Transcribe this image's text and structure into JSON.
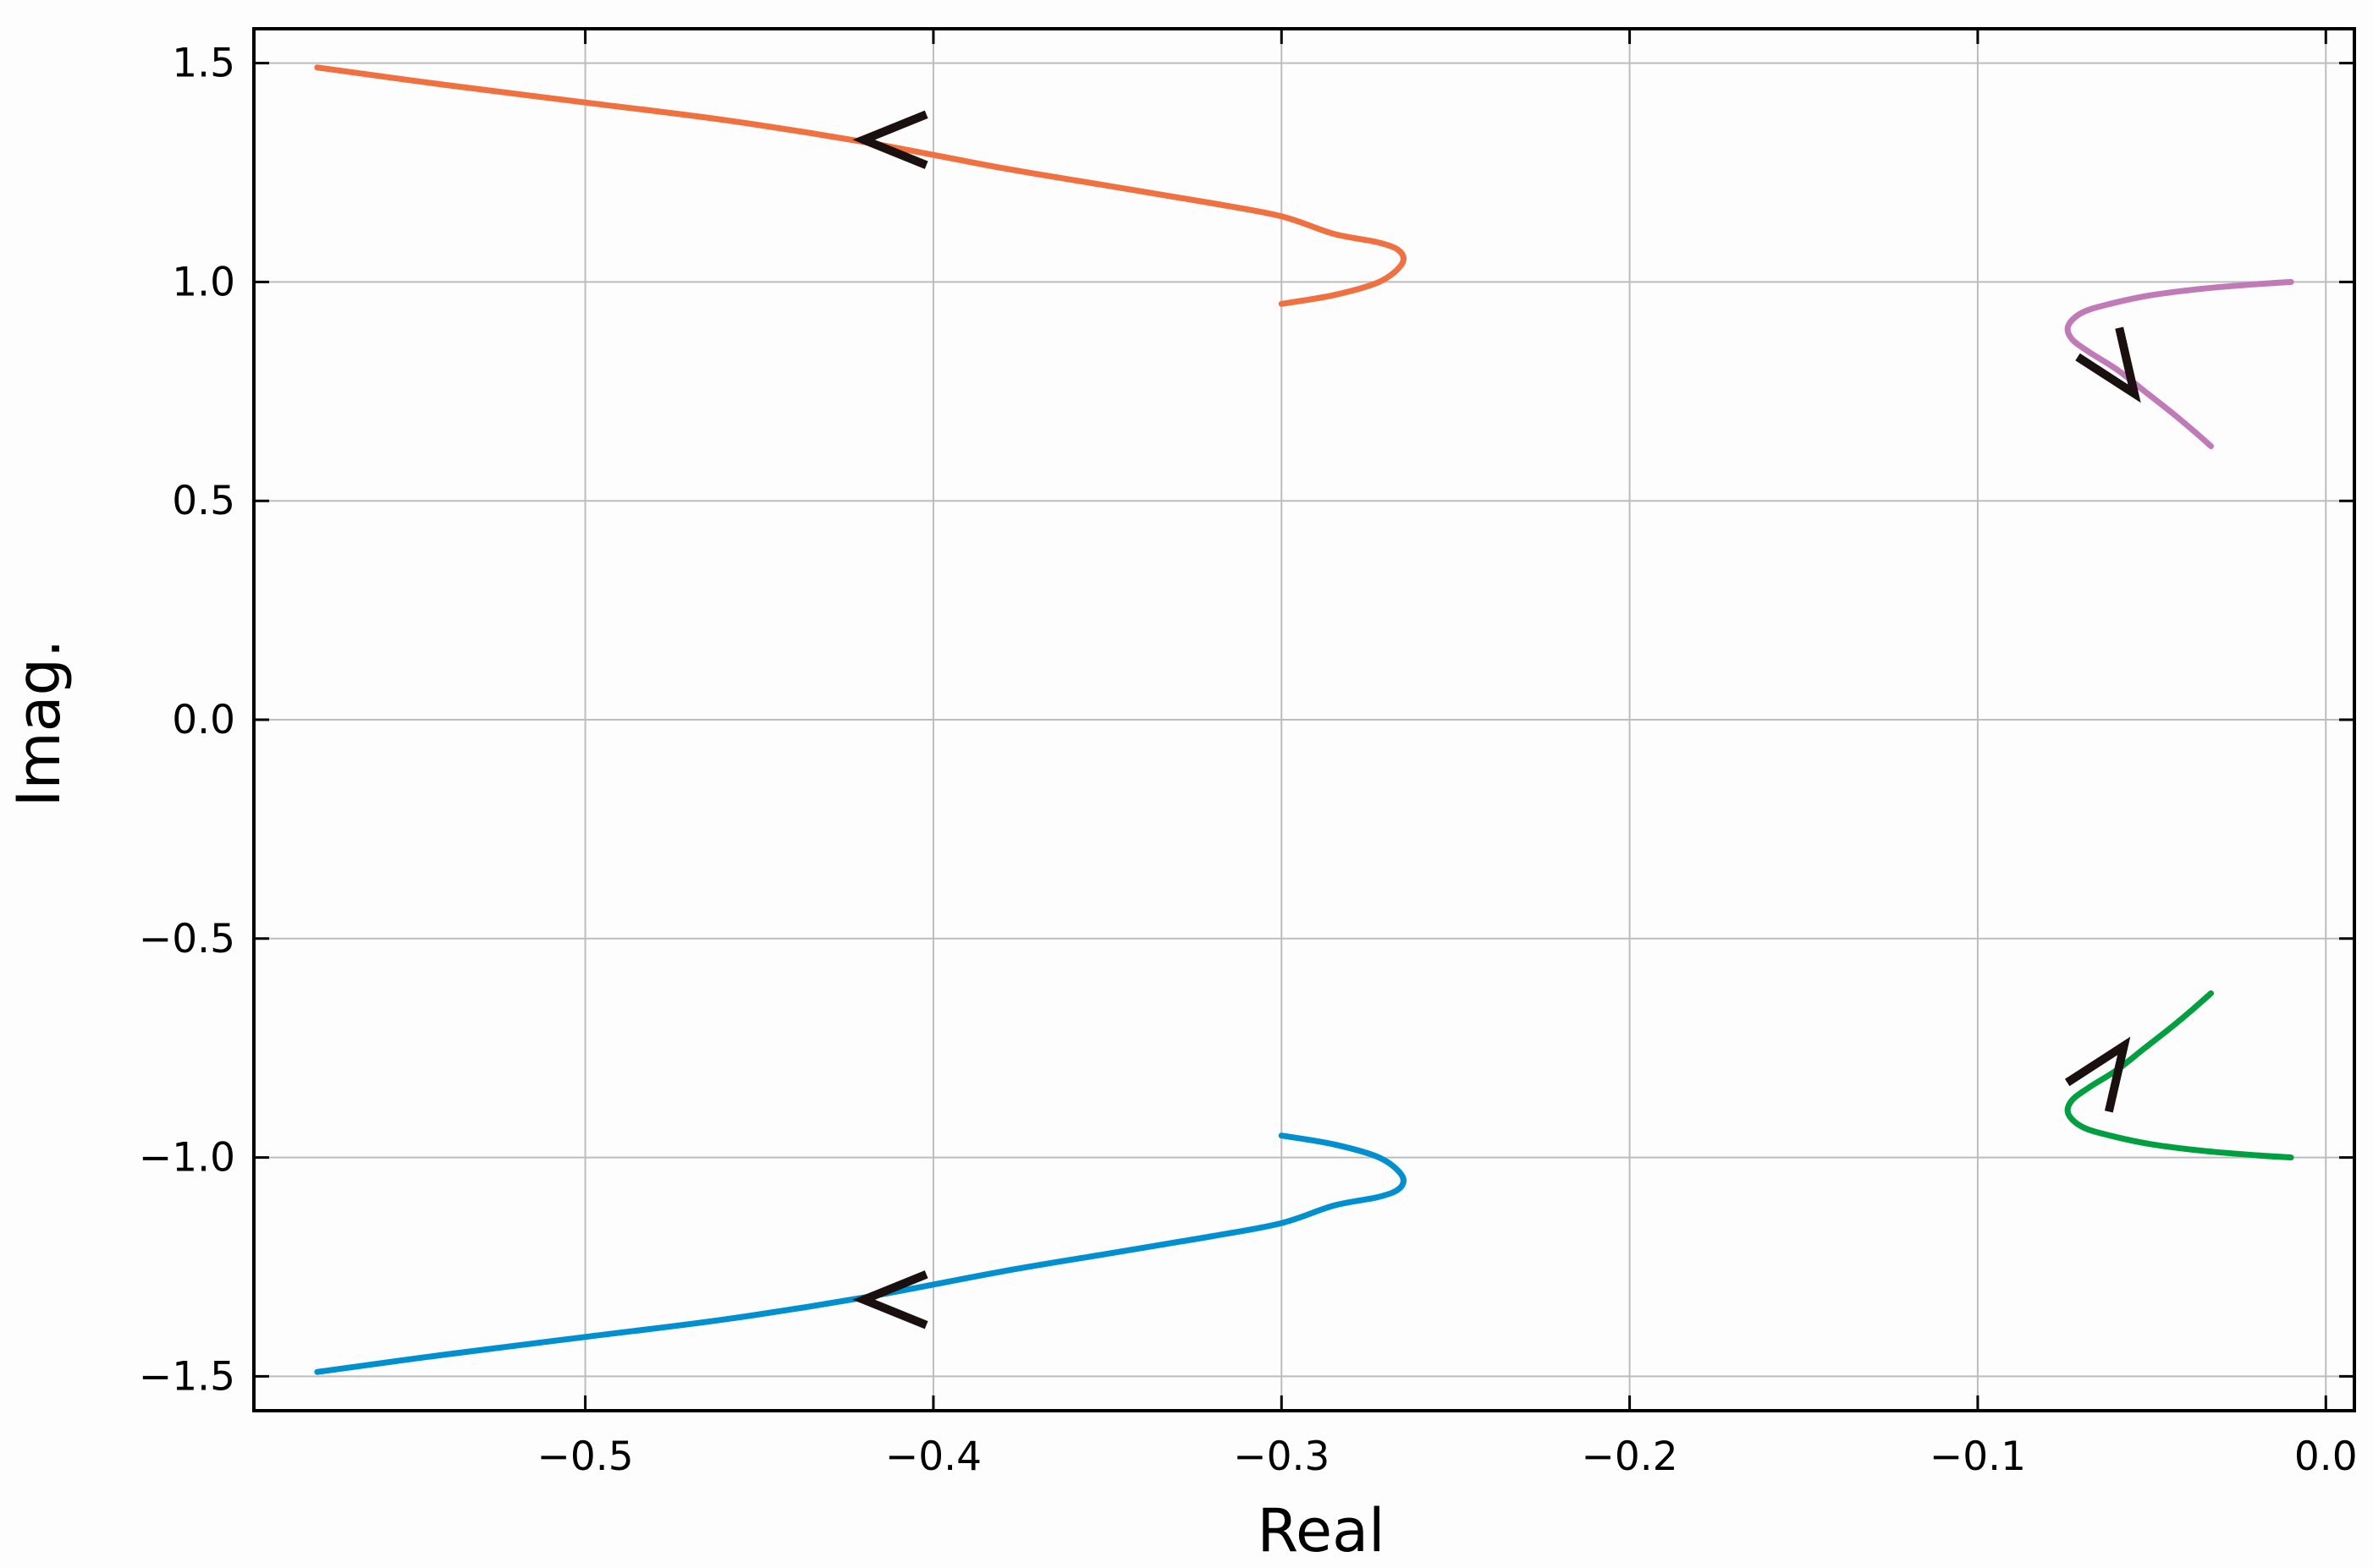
{
  "chart_data": {
    "type": "line",
    "title": "",
    "xlabel": "Real",
    "ylabel": "Imag.",
    "xlim": [
      -0.5952,
      0.0082
    ],
    "ylim": [
      -1.5785,
      1.5785
    ],
    "grid": true,
    "legend": "none",
    "x_ticks": [
      -0.5,
      -0.4,
      -0.3,
      -0.2,
      -0.1,
      0.0
    ],
    "x_tick_labels": [
      "−0.5",
      "−0.4",
      "−0.3",
      "−0.2",
      "−0.1",
      "0.0"
    ],
    "y_ticks": [
      1.5,
      1.0,
      0.5,
      0.0,
      -0.5,
      -1.0,
      -1.5
    ],
    "y_tick_labels": [
      "1.5",
      "1.0",
      "0.5",
      "0.0",
      "−0.5",
      "−1.0",
      "−1.5"
    ],
    "series": [
      {
        "color": "#f07040",
        "x": [
          -0.3,
          -0.285,
          -0.272,
          -0.2655,
          -0.266,
          -0.272,
          -0.285,
          -0.3,
          -0.32,
          -0.35,
          -0.38,
          -0.42,
          -0.46,
          -0.5,
          -0.54,
          -0.577
        ],
        "y": [
          0.95,
          0.97,
          1.0,
          1.04,
          1.07,
          1.09,
          1.11,
          1.15,
          1.18,
          1.22,
          1.26,
          1.32,
          1.37,
          1.41,
          1.45,
          1.49
        ],
        "arrow": {
          "x": -0.42,
          "y": 1.325,
          "direction": "left"
        }
      },
      {
        "color": "#0090d0",
        "x": [
          -0.3,
          -0.285,
          -0.272,
          -0.2655,
          -0.266,
          -0.272,
          -0.285,
          -0.3,
          -0.32,
          -0.35,
          -0.38,
          -0.42,
          -0.46,
          -0.5,
          -0.54,
          -0.577
        ],
        "y": [
          -0.95,
          -0.97,
          -1.0,
          -1.04,
          -1.07,
          -1.09,
          -1.11,
          -1.15,
          -1.18,
          -1.22,
          -1.26,
          -1.32,
          -1.37,
          -1.41,
          -1.45,
          -1.49
        ],
        "arrow": {
          "x": -0.42,
          "y": -1.325,
          "direction": "left"
        }
      },
      {
        "color": "#c07ab8",
        "x": [
          -0.01,
          -0.02,
          -0.035,
          -0.05,
          -0.062,
          -0.07,
          -0.074,
          -0.073,
          -0.068,
          -0.06,
          -0.052,
          -0.044,
          -0.038,
          -0.033
        ],
        "y": [
          1.0,
          0.995,
          0.985,
          0.97,
          0.95,
          0.93,
          0.9,
          0.87,
          0.84,
          0.8,
          0.75,
          0.7,
          0.66,
          0.625
        ],
        "arrow": {
          "x": -0.055,
          "y": 0.745,
          "direction": "down-right"
        }
      },
      {
        "color": "#00a040",
        "x": [
          -0.01,
          -0.02,
          -0.035,
          -0.05,
          -0.062,
          -0.07,
          -0.074,
          -0.073,
          -0.068,
          -0.06,
          -0.052,
          -0.044,
          -0.038,
          -0.033
        ],
        "y": [
          -1.0,
          -0.995,
          -0.985,
          -0.97,
          -0.95,
          -0.93,
          -0.9,
          -0.87,
          -0.84,
          -0.8,
          -0.75,
          -0.7,
          -0.66,
          -0.625
        ],
        "arrow": {
          "x": -0.058,
          "y": -0.745,
          "direction": "up-right"
        }
      }
    ]
  }
}
